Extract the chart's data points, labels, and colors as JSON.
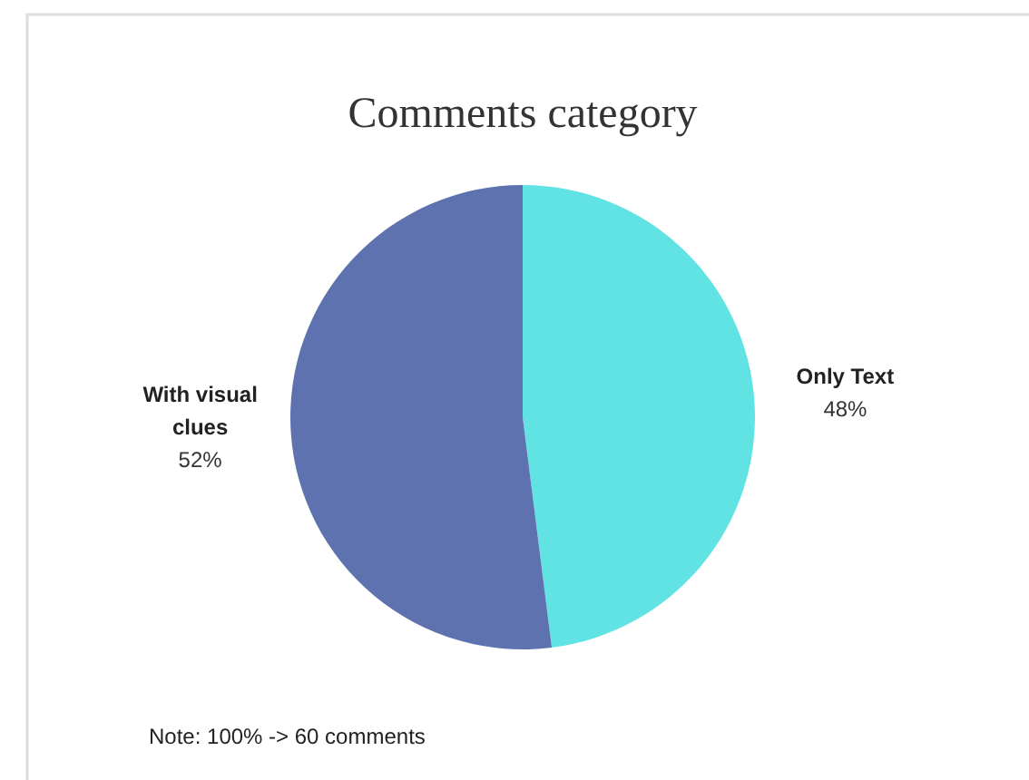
{
  "chart_data": {
    "type": "pie",
    "title": "Comments category",
    "categories": [
      "Only Text",
      "With visual clues"
    ],
    "values": [
      48,
      52
    ],
    "colors": [
      "#62e3e3",
      "#5f72b0"
    ],
    "value_labels": [
      "48%",
      "52%"
    ],
    "annotations": [
      "Note: 100% -> 60 comments"
    ]
  }
}
